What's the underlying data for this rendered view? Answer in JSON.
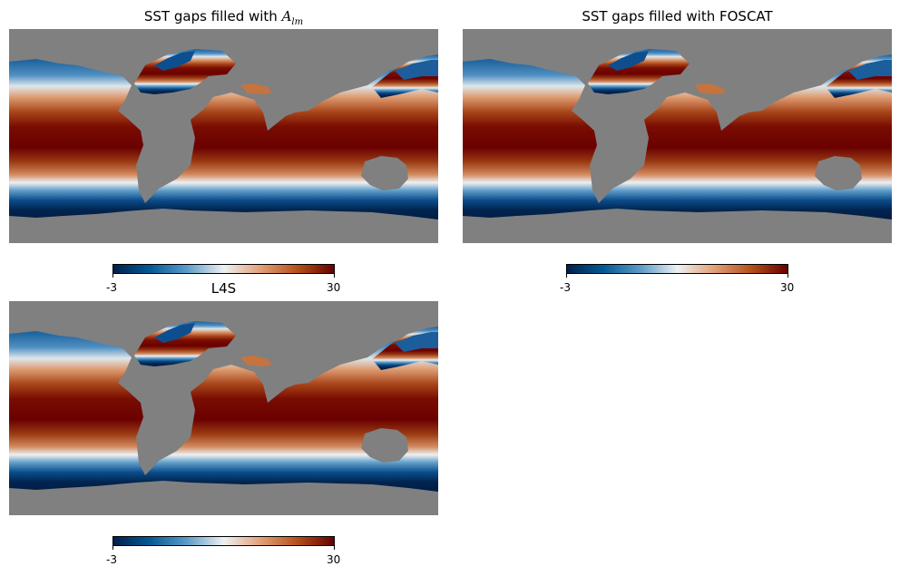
{
  "panels": [
    {
      "title_prefix": "SST gaps filled with ",
      "title_math_symbol": "A",
      "title_math_sub": "lm",
      "title_plain": ""
    },
    {
      "title_prefix": "",
      "title_math_symbol": "",
      "title_math_sub": "",
      "title_plain": "SST gaps filled with FOSCAT"
    },
    {
      "title_prefix": "",
      "title_math_symbol": "",
      "title_math_sub": "",
      "title_plain": "L4S"
    }
  ],
  "colorbar": {
    "min_label": "-3",
    "max_label": "30",
    "vmin": -3,
    "vmax": 30
  },
  "colors": {
    "land": "#808080",
    "colormap_stops": [
      "#00204d",
      "#045a94",
      "#5b9bc8",
      "#eef1f2",
      "#e2a078",
      "#b4511b",
      "#670000"
    ]
  }
}
